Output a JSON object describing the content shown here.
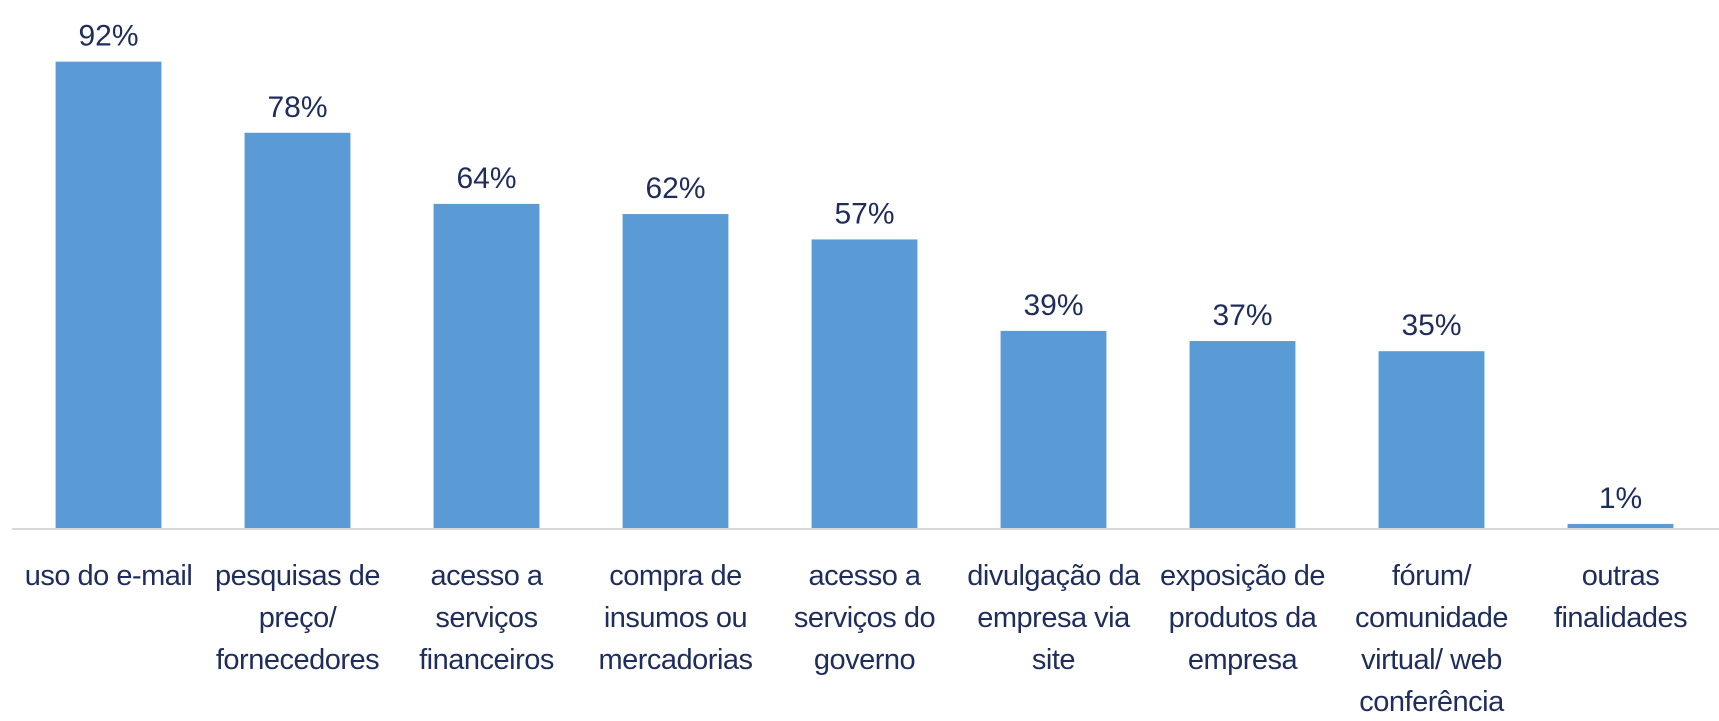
{
  "chart_data": {
    "type": "bar",
    "categories": [
      "uso do e-mail",
      "pesquisas de preço/ fornecedores",
      "acesso a serviços financeiros",
      "compra de insumos ou mercadorias",
      "acesso a serviços do governo",
      "divulgação da empresa via site",
      "exposição de produtos da empresa",
      "fórum/ comunidade virtual/ web conferência",
      "outras finalidades"
    ],
    "values": [
      92,
      78,
      64,
      62,
      57,
      39,
      37,
      35,
      1
    ],
    "value_labels": [
      "92%",
      "78%",
      "64%",
      "62%",
      "57%",
      "39%",
      "37%",
      "35%",
      "1%"
    ],
    "color": "#5b9bd5",
    "ylim": [
      0,
      100
    ]
  }
}
